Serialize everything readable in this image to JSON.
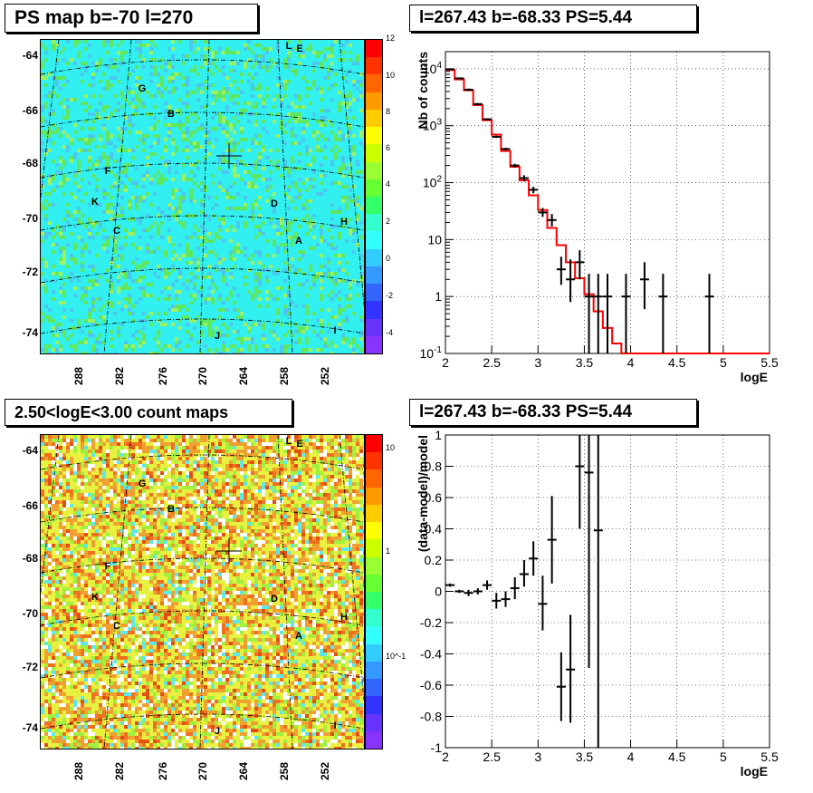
{
  "panels": {
    "tl_title": "PS map b=-70 l=270",
    "tr_title": "l=267.43 b=-68.33 PS=5.44",
    "bl_title": "2.50<logE<3.00 count maps",
    "br_title": "l=267.43 b=-68.33 PS=5.44"
  },
  "maps": {
    "lat_labels": [
      "-64",
      "-66",
      "-68",
      "-70",
      "-72",
      "-74"
    ],
    "lon_labels": [
      "288",
      "282",
      "276",
      "270",
      "264",
      "258",
      "252"
    ],
    "sources": [
      "L",
      "E",
      "G",
      "B",
      "F",
      "K",
      "C",
      "D",
      "H",
      "A",
      "J",
      "I"
    ],
    "ps_palette_labels": [
      "12",
      "10",
      "8",
      "6",
      "4",
      "2",
      "0",
      "-2",
      "-4"
    ],
    "count_palette_labels": [
      "10",
      "1",
      "10^-1"
    ]
  },
  "chart_data": [
    {
      "type": "line",
      "title": "l=267.43 b=-68.33 PS=5.44",
      "xlabel": "logE",
      "ylabel": "Nb of counts",
      "xlim": [
        2,
        5.5
      ],
      "ylim": [
        0.1,
        20000
      ],
      "log_y": true,
      "grid": true,
      "x_ticks": [
        "2",
        "2.5",
        "3",
        "3.5",
        "4",
        "4.5",
        "5",
        "5.5"
      ],
      "y_ticks": [
        "10^-1",
        "1",
        "10",
        "10^2",
        "10^3",
        "10^4"
      ],
      "series": [
        {
          "kind": "model-step",
          "edges": [
            2.0,
            2.1,
            2.2,
            2.3,
            2.4,
            2.5,
            2.6,
            2.7,
            2.8,
            2.9,
            3.0,
            3.1,
            3.2,
            3.3,
            3.4,
            3.5,
            3.6,
            3.7,
            3.8,
            3.9,
            4.0,
            5.5
          ],
          "values": [
            9500,
            6500,
            4200,
            2300,
            1250,
            700,
            360,
            190,
            110,
            60,
            33,
            16,
            8,
            4,
            2.1,
            1.1,
            0.55,
            0.28,
            0.15,
            0.1,
            0.1
          ]
        },
        {
          "kind": "data-points",
          "x": [
            2.05,
            2.15,
            2.25,
            2.35,
            2.45,
            2.55,
            2.65,
            2.75,
            2.85,
            2.95,
            3.05,
            3.15,
            3.25,
            3.35,
            3.45,
            3.55,
            3.65,
            3.75,
            3.95,
            4.15,
            4.35,
            4.85
          ],
          "y": [
            9800,
            6800,
            4300,
            2400,
            1300,
            640,
            390,
            200,
            120,
            75,
            30,
            22,
            3,
            2,
            4,
            1,
            1,
            1,
            1,
            2,
            1,
            1
          ],
          "ylo": [
            9600,
            6600,
            4100,
            2300,
            1250,
            610,
            370,
            185,
            105,
            65,
            25,
            17,
            1.6,
            0.8,
            2,
            0.1,
            0.1,
            0.1,
            0.1,
            0.6,
            0.1,
            0.1
          ],
          "yhi": [
            10000,
            7000,
            4500,
            2500,
            1350,
            670,
            410,
            215,
            135,
            85,
            36,
            28,
            5,
            4.5,
            6.5,
            2.5,
            2.5,
            2.5,
            2.5,
            4,
            2.5,
            2.5
          ]
        }
      ]
    },
    {
      "type": "scatter",
      "title": "l=267.43 b=-68.33 PS=5.44",
      "xlabel": "logE",
      "ylabel": "(data-model)/model",
      "xlim": [
        2,
        5.5
      ],
      "ylim": [
        -1,
        1
      ],
      "grid": true,
      "x_ticks": [
        "2",
        "2.5",
        "3",
        "3.5",
        "4",
        "4.5",
        "5",
        "5.5"
      ],
      "y_ticks": [
        "-1",
        "-0.8",
        "-0.6",
        "-0.4",
        "-0.2",
        "0",
        "0.2",
        "0.4",
        "0.6",
        "0.8",
        "1"
      ],
      "series": [
        {
          "kind": "data-points",
          "x": [
            2.05,
            2.15,
            2.25,
            2.35,
            2.45,
            2.55,
            2.65,
            2.75,
            2.85,
            2.95,
            3.05,
            3.15,
            3.25,
            3.35,
            3.45,
            3.55,
            3.65
          ],
          "y": [
            0.04,
            0.0,
            -0.01,
            0.0,
            0.04,
            -0.06,
            -0.05,
            0.02,
            0.11,
            0.21,
            -0.08,
            0.33,
            -0.61,
            -0.5,
            0.8,
            0.76,
            0.39
          ],
          "ylo": [
            0.03,
            -0.01,
            -0.03,
            -0.02,
            0.01,
            -0.11,
            -0.1,
            -0.05,
            0.03,
            0.1,
            -0.25,
            0.05,
            -0.83,
            -0.84,
            0.4,
            -0.49,
            -1.0
          ],
          "yhi": [
            0.05,
            0.01,
            0.01,
            0.02,
            0.07,
            -0.01,
            0.0,
            0.09,
            0.2,
            0.32,
            0.1,
            0.61,
            -0.39,
            -0.15,
            1.0,
            1.0,
            1.0
          ]
        }
      ]
    }
  ]
}
